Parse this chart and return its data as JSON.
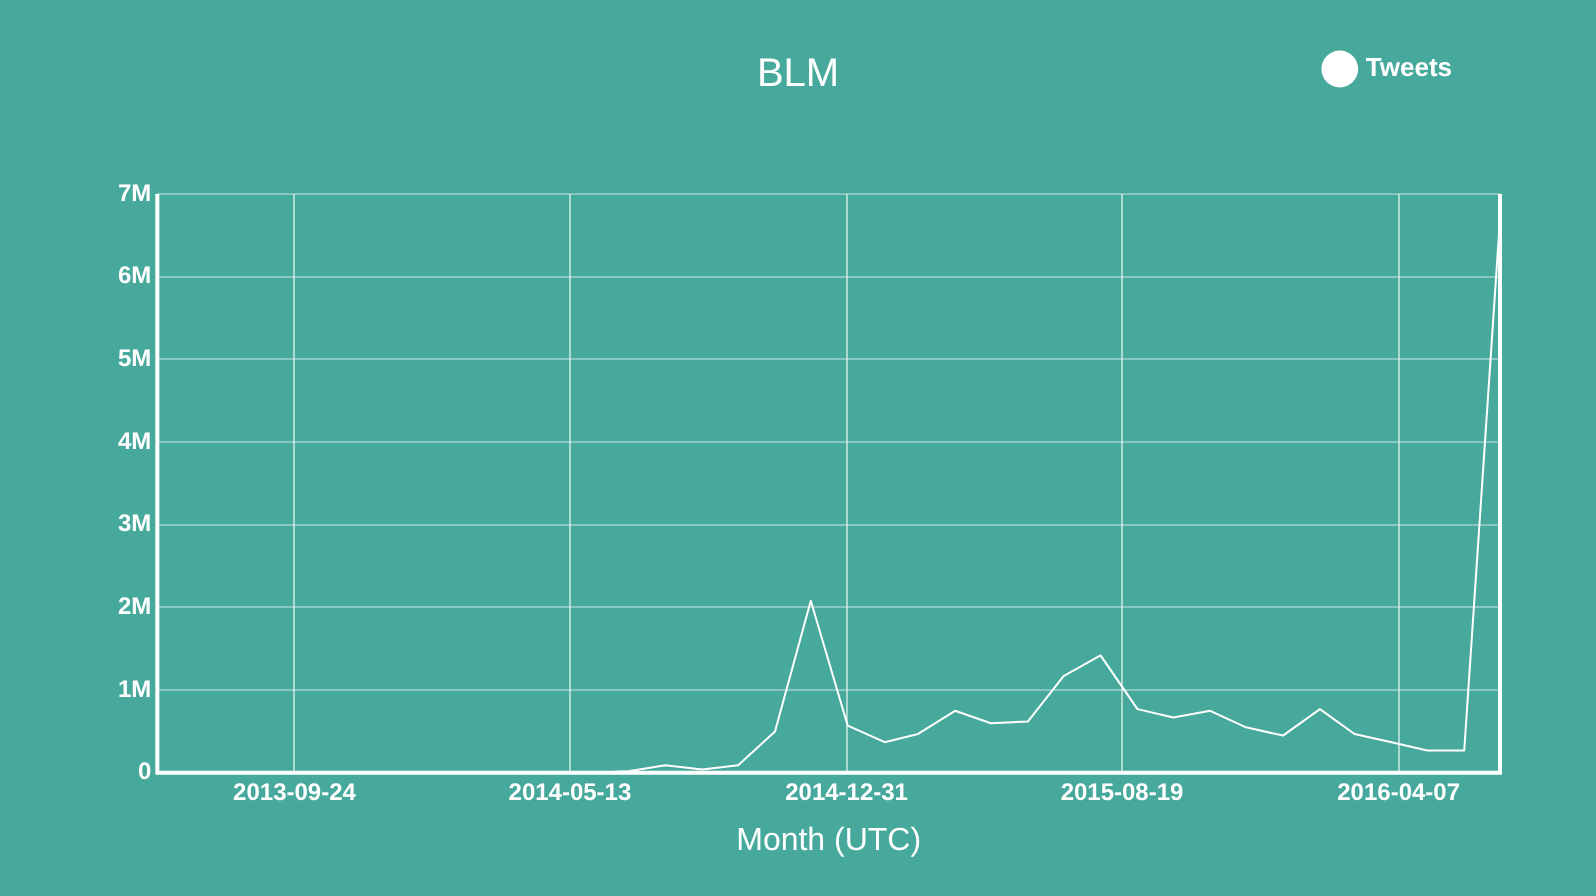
{
  "chart_data": {
    "type": "line",
    "title": "BLM",
    "xlabel": "Month (UTC)",
    "x": [
      "2013-06",
      "2013-07",
      "2013-08",
      "2013-09",
      "2013-10",
      "2013-11",
      "2013-12",
      "2014-01",
      "2014-02",
      "2014-03",
      "2014-04",
      "2014-05",
      "2014-06",
      "2014-07",
      "2014-08",
      "2014-09",
      "2014-10",
      "2014-11",
      "2014-12",
      "2015-01",
      "2015-02",
      "2015-03",
      "2015-04",
      "2015-05",
      "2015-06",
      "2015-07",
      "2015-08",
      "2015-09",
      "2015-10",
      "2015-11",
      "2015-12",
      "2016-01",
      "2016-02",
      "2016-03",
      "2016-04",
      "2016-05",
      "2016-06",
      "2016-07"
    ],
    "series": [
      {
        "name": "Tweets",
        "color": "#ffffff",
        "values": [
          0,
          0,
          0,
          0,
          0,
          0,
          0,
          0,
          0,
          0,
          0,
          0,
          0,
          20000,
          90000,
          40000,
          90000,
          500000,
          2080000,
          570000,
          370000,
          470000,
          750000,
          600000,
          620000,
          1170000,
          1420000,
          770000,
          670000,
          750000,
          550000,
          450000,
          770000,
          470000,
          370000,
          270000,
          270000,
          6700000
        ]
      }
    ],
    "xlim": [
      "2013-06",
      "2016-07"
    ],
    "xticks": [
      {
        "value": "2013-09-24",
        "label": "2013-09-24"
      },
      {
        "value": "2014-05-13",
        "label": "2014-05-13"
      },
      {
        "value": "2014-12-31",
        "label": "2014-12-31"
      },
      {
        "value": "2015-08-19",
        "label": "2015-08-19"
      },
      {
        "value": "2016-04-07",
        "label": "2016-04-07"
      }
    ],
    "ylim": [
      0,
      7000000
    ],
    "yticks": [
      0,
      {
        "value": 1000000,
        "label": "1M"
      },
      {
        "value": 2000000,
        "label": "2M"
      },
      {
        "value": 3000000,
        "label": "3M"
      },
      {
        "value": 4000000,
        "label": "4M"
      },
      {
        "value": 5000000,
        "label": "5M"
      },
      {
        "value": 6000000,
        "label": "6M"
      },
      {
        "value": 7000000,
        "label": "7M"
      }
    ],
    "grid": true,
    "legend": "top right",
    "marker": "none",
    "line_style": "solid"
  }
}
